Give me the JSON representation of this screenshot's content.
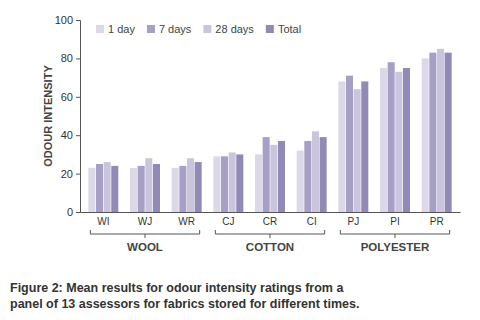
{
  "chart_data": {
    "type": "bar",
    "title": [
      "Figure 2: Mean results for odour intensity ratings from a",
      "panel of 13 assessors for fabrics stored for different times."
    ],
    "y_label": "ODOUR INTENSITY",
    "categories": [
      "WI",
      "WJ",
      "WR",
      "CJ",
      "CR",
      "CI",
      "PJ",
      "PI",
      "PR"
    ],
    "groups": [
      {
        "label": "WOOL",
        "members": [
          "WI",
          "WJ",
          "WR"
        ]
      },
      {
        "label": "COTTON",
        "members": [
          "CJ",
          "CR",
          "CI"
        ]
      },
      {
        "label": "POLYESTER",
        "members": [
          "PJ",
          "PI",
          "PR"
        ]
      }
    ],
    "series": [
      {
        "name": "1 day",
        "color": "#dcd8e8",
        "values": [
          23,
          23,
          23,
          29,
          30,
          32,
          68,
          75,
          80
        ]
      },
      {
        "name": "7 days",
        "color": "#a69fc6",
        "values": [
          25,
          24,
          24,
          29,
          39,
          37,
          71,
          78,
          83
        ]
      },
      {
        "name": "28 days",
        "color": "#cac5dd",
        "values": [
          26,
          28,
          28,
          31,
          35,
          42,
          64,
          73,
          85
        ]
      },
      {
        "name": "Total",
        "color": "#9189b6",
        "values": [
          24,
          25,
          26,
          30,
          37,
          39,
          68,
          75,
          83
        ]
      }
    ],
    "ylim": [
      0,
      100
    ],
    "yticks": [
      0,
      20,
      40,
      60,
      80,
      100
    ],
    "grid": false,
    "legend": "top-left"
  }
}
